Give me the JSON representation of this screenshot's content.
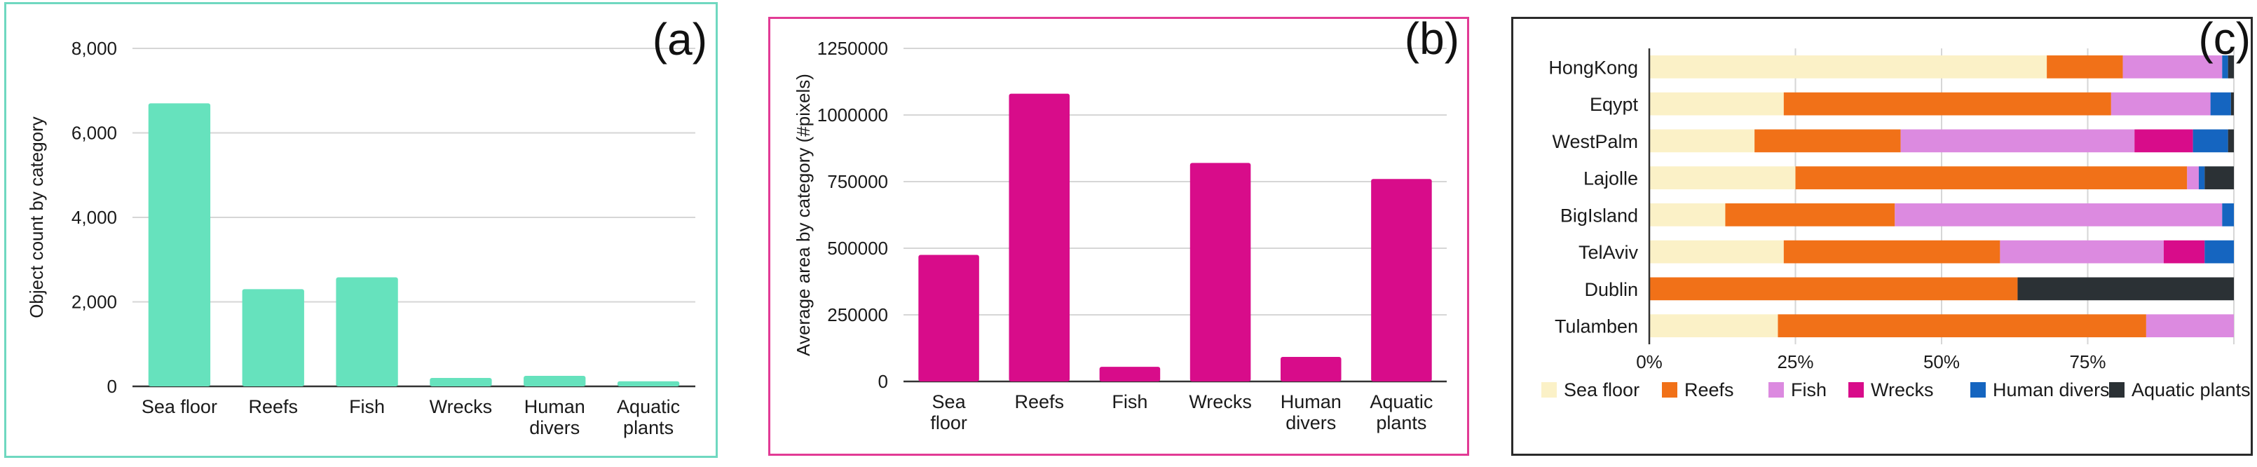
{
  "chart_data": [
    {
      "type": "bar",
      "panel_label": "(a)",
      "title": "",
      "xlabel": "",
      "ylabel": "Object count by category",
      "categories": [
        [
          "Sea floor"
        ],
        [
          "Reefs"
        ],
        [
          "Fish"
        ],
        [
          "Wrecks"
        ],
        [
          "Human",
          "divers"
        ],
        [
          "Aquatic",
          "plants"
        ]
      ],
      "values": [
        6700,
        2300,
        2580,
        200,
        250,
        120
      ],
      "ylim": [
        0,
        8000
      ],
      "yticks": [
        0,
        2000,
        4000,
        6000,
        8000
      ],
      "ytick_labels": [
        "0",
        "2,000",
        "4,000",
        "6,000",
        "8,000"
      ],
      "color": "#66e2bd",
      "grid": true
    },
    {
      "type": "bar",
      "panel_label": "(b)",
      "title": "",
      "xlabel": "",
      "ylabel": "Average area by category (#pixels)",
      "categories": [
        [
          "Sea",
          "floor"
        ],
        [
          "Reefs"
        ],
        [
          "Fish"
        ],
        [
          "Wrecks"
        ],
        [
          "Human",
          "divers"
        ],
        [
          "Aquatic",
          "plants"
        ]
      ],
      "values": [
        475000,
        1080000,
        55000,
        820000,
        92000,
        760000
      ],
      "ylim": [
        0,
        1250000
      ],
      "yticks": [
        0,
        250000,
        500000,
        750000,
        1000000,
        1250000
      ],
      "ytick_labels": [
        "0",
        "250000",
        "500000",
        "750000",
        "1000000",
        "1250000"
      ],
      "color": "#d80c8a",
      "grid": true
    },
    {
      "type": "bar",
      "orientation": "horizontal",
      "stacked": "percent",
      "panel_label": "(c)",
      "title": "",
      "xlabel": "",
      "ylabel": "",
      "categories": [
        "HongKong",
        "Eqypt",
        "WestPalm",
        "Lajolle",
        "BigIsland",
        "TelAviv",
        "Dublin",
        "Tulamben"
      ],
      "xlim": [
        0,
        100
      ],
      "xticks": [
        0,
        25,
        50,
        75,
        100
      ],
      "xtick_labels": [
        "0%",
        "25%",
        "50%",
        "75%",
        ""
      ],
      "legend_position": "bottom",
      "series": [
        {
          "name": "Sea floor",
          "color": "#fbf1c7",
          "values": [
            68,
            23,
            18,
            25,
            13,
            23,
            0,
            22
          ]
        },
        {
          "name": "Reefs",
          "color": "#f17118",
          "values": [
            13,
            56,
            25,
            67,
            29,
            37,
            63,
            63
          ]
        },
        {
          "name": "Fish",
          "color": "#dc8ae0",
          "values": [
            17,
            17,
            40,
            2,
            56,
            28,
            0,
            15
          ]
        },
        {
          "name": "Wrecks",
          "color": "#d80c8a",
          "values": [
            0,
            0,
            10,
            0,
            0,
            7,
            0,
            0
          ]
        },
        {
          "name": "Human divers",
          "color": "#1565c0",
          "values": [
            1,
            3.5,
            6,
            1,
            2,
            5,
            0,
            0
          ]
        },
        {
          "name": "Aquatic plants",
          "color": "#2b3135",
          "values": [
            1,
            0.5,
            1,
            5,
            0,
            0,
            37,
            0
          ]
        }
      ]
    }
  ]
}
